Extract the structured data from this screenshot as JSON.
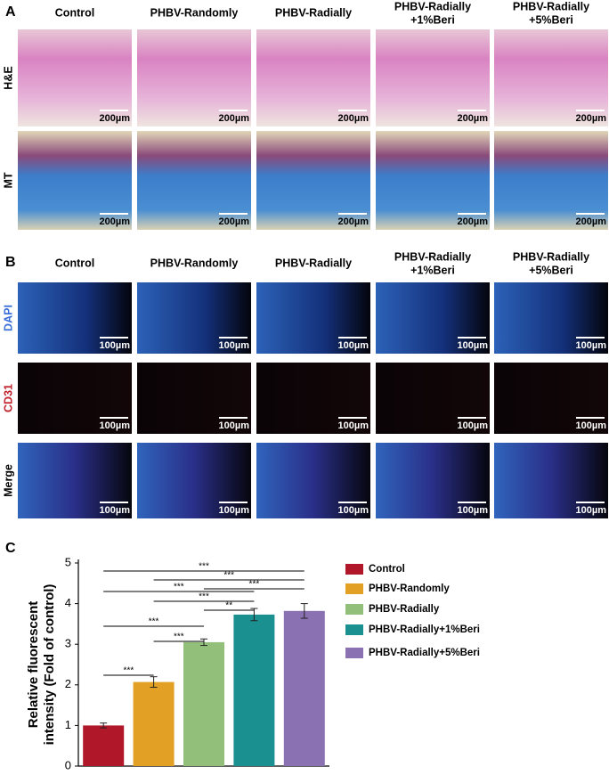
{
  "panel_a": {
    "label": "A",
    "columns": [
      [
        "Control"
      ],
      [
        "PHBV-Randomly"
      ],
      [
        "PHBV-Radially"
      ],
      [
        "PHBV-Radially",
        "+1%Beri"
      ],
      [
        "PHBV-Radially",
        "+5%Beri"
      ]
    ],
    "rows": [
      "H&E",
      "MT"
    ],
    "scale_bar": "200µm"
  },
  "panel_b": {
    "label": "B",
    "columns": [
      [
        "Control"
      ],
      [
        "PHBV-Randomly"
      ],
      [
        "PHBV-Radially"
      ],
      [
        "PHBV-Radially",
        "+1%Beri"
      ],
      [
        "PHBV-Radially",
        "+5%Beri"
      ]
    ],
    "rows": [
      "DAPI",
      "CD31",
      "Merge"
    ],
    "scale_bar": "100µm"
  },
  "panel_c": {
    "label": "C"
  },
  "chart_data": {
    "type": "bar",
    "ylabel": [
      "Relative fluorescent",
      "intensity (Fold of control)"
    ],
    "categories": [
      "Control",
      "PHBV-Randomly",
      "PHBV-Radially",
      "PHBV-Radially+1%Beri",
      "PHBV-Radially+5%Beri"
    ],
    "values": [
      1.0,
      2.07,
      3.05,
      3.73,
      3.82
    ],
    "errors": [
      0.06,
      0.13,
      0.08,
      0.15,
      0.18
    ],
    "colors": [
      "#b0182a",
      "#e2a024",
      "#92c07a",
      "#1a9090",
      "#8a72b2"
    ],
    "ylim": [
      0,
      5
    ],
    "yticks": [
      0,
      1,
      2,
      3,
      4,
      5
    ],
    "comparisons": [
      {
        "from": 0,
        "to": 4,
        "label": "***"
      },
      {
        "from": 1,
        "to": 4,
        "label": "***"
      },
      {
        "from": 2,
        "to": 4,
        "label": "***"
      },
      {
        "from": 0,
        "to": 3,
        "label": "***"
      },
      {
        "from": 1,
        "to": 3,
        "label": "***"
      },
      {
        "from": 2,
        "to": 3,
        "label": "**"
      },
      {
        "from": 0,
        "to": 2,
        "label": "***"
      },
      {
        "from": 1,
        "to": 2,
        "label": "***"
      },
      {
        "from": 0,
        "to": 1,
        "label": "***"
      }
    ]
  }
}
